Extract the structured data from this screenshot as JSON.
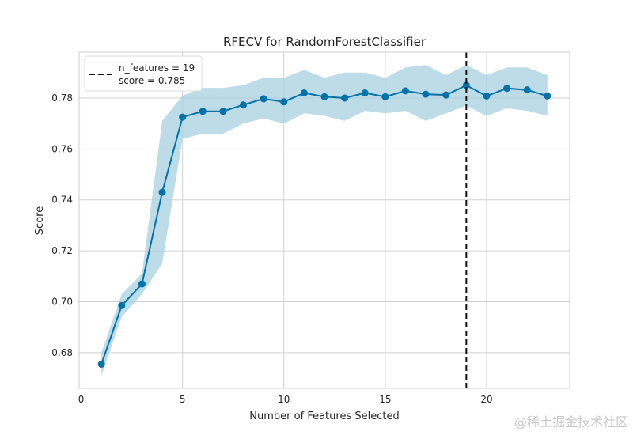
{
  "watermark": "@稀土掘金技术社区",
  "chart_data": {
    "type": "line",
    "title": "RFECV for RandomForestClassifier",
    "xlabel": "Number of Features Selected",
    "ylabel": "Score",
    "xlim": [
      -0.1,
      24.1
    ],
    "ylim": [
      0.666,
      0.798
    ],
    "xticks": [
      0,
      5,
      10,
      15,
      20
    ],
    "yticks": [
      0.68,
      0.7,
      0.72,
      0.74,
      0.76,
      0.78
    ],
    "ytick_labels": [
      "0.68",
      "0.70",
      "0.72",
      "0.74",
      "0.76",
      "0.78"
    ],
    "grid": true,
    "x": [
      1,
      2,
      3,
      4,
      5,
      6,
      7,
      8,
      9,
      10,
      11,
      12,
      13,
      14,
      15,
      16,
      17,
      18,
      19,
      20,
      21,
      22,
      23
    ],
    "series": [
      {
        "values": [
          0.6755,
          0.6985,
          0.707,
          0.743,
          0.7725,
          0.7748,
          0.7748,
          0.7773,
          0.7797,
          0.7785,
          0.782,
          0.7805,
          0.78,
          0.782,
          0.7805,
          0.7828,
          0.7815,
          0.7812,
          0.785,
          0.7808,
          0.7838,
          0.7832,
          0.7808
        ],
        "upper": [
          0.68,
          0.703,
          0.711,
          0.771,
          0.781,
          0.784,
          0.784,
          0.785,
          0.788,
          0.788,
          0.791,
          0.788,
          0.79,
          0.79,
          0.788,
          0.792,
          0.793,
          0.789,
          0.793,
          0.789,
          0.792,
          0.792,
          0.789
        ],
        "lower": [
          0.671,
          0.694,
          0.703,
          0.715,
          0.764,
          0.766,
          0.766,
          0.77,
          0.772,
          0.77,
          0.774,
          0.773,
          0.771,
          0.775,
          0.774,
          0.775,
          0.771,
          0.774,
          0.777,
          0.773,
          0.776,
          0.775,
          0.773
        ],
        "color": "#0072a8",
        "band_color": "#a8cfe0"
      }
    ],
    "vline": {
      "x": 19,
      "style": "dashed",
      "color": "#111111"
    },
    "legend": {
      "position": "top-left",
      "line1": "n_features = 19",
      "line2": "score = 0.785"
    }
  }
}
